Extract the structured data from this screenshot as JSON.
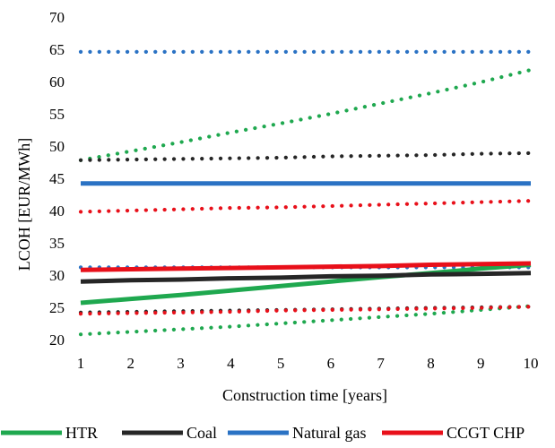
{
  "chart_data": {
    "type": "line",
    "title": "",
    "xlabel": "Construction time [years]",
    "ylabel": "LCOH [EUR/MWh]",
    "x": [
      1,
      2,
      3,
      4,
      5,
      6,
      7,
      8,
      9,
      10
    ],
    "xlim": [
      1,
      10
    ],
    "ylim": [
      20,
      70
    ],
    "yticks": [
      20,
      25,
      30,
      35,
      40,
      45,
      50,
      55,
      60,
      65,
      70
    ],
    "xticks": [
      1,
      2,
      3,
      4,
      5,
      6,
      7,
      8,
      9,
      10
    ],
    "grid": false,
    "legend_position": "bottom",
    "legend": [
      {
        "name": "HTR",
        "color": "#1fa84f"
      },
      {
        "name": "Coal",
        "color": "#262626"
      },
      {
        "name": "Natural gas",
        "color": "#2a72c4"
      },
      {
        "name": "CCGT CHP",
        "color": "#e8101a"
      }
    ],
    "series": [
      {
        "name": "HTR",
        "style": "solid",
        "color": "#1fa84f",
        "values": [
          25.7,
          26.3,
          26.9,
          27.6,
          28.3,
          29.0,
          29.7,
          30.3,
          31.0,
          31.6
        ]
      },
      {
        "name": "HTR",
        "style": "dotted",
        "color": "#1fa84f",
        "values": [
          47.8,
          49.2,
          50.6,
          52.1,
          53.5,
          55.0,
          56.6,
          58.2,
          59.9,
          61.8
        ]
      },
      {
        "name": "HTR",
        "style": "dotted",
        "color": "#1fa84f",
        "values": [
          20.8,
          21.2,
          21.6,
          22.0,
          22.5,
          23.0,
          23.5,
          24.0,
          24.6,
          25.2
        ]
      },
      {
        "name": "Coal",
        "style": "solid",
        "color": "#262626",
        "values": [
          29.0,
          29.2,
          29.3,
          29.5,
          29.6,
          29.8,
          29.9,
          30.1,
          30.2,
          30.3
        ]
      },
      {
        "name": "Coal",
        "style": "dotted",
        "color": "#262626",
        "values": [
          47.8,
          47.9,
          48.0,
          48.1,
          48.2,
          48.4,
          48.5,
          48.6,
          48.8,
          48.9
        ]
      },
      {
        "name": "Coal",
        "style": "dotted",
        "color": "#262626",
        "values": [
          24.2,
          24.3,
          24.4,
          24.5,
          24.6,
          24.7,
          24.8,
          24.9,
          25.0,
          25.1
        ]
      },
      {
        "name": "Natural gas",
        "style": "solid",
        "color": "#2a72c4",
        "values": [
          44.2,
          44.2,
          44.2,
          44.2,
          44.2,
          44.2,
          44.2,
          44.2,
          44.2,
          44.2
        ]
      },
      {
        "name": "Natural gas",
        "style": "dotted",
        "color": "#2a72c4",
        "values": [
          64.6,
          64.6,
          64.6,
          64.6,
          64.6,
          64.6,
          64.6,
          64.6,
          64.6,
          64.6
        ]
      },
      {
        "name": "Natural gas",
        "style": "dotted",
        "color": "#2a72c4",
        "values": [
          31.2,
          31.2,
          31.2,
          31.2,
          31.2,
          31.2,
          31.2,
          31.2,
          31.2,
          31.2
        ]
      },
      {
        "name": "CCGT CHP",
        "style": "solid",
        "color": "#e8101a",
        "values": [
          30.8,
          30.9,
          31.0,
          31.1,
          31.2,
          31.3,
          31.4,
          31.6,
          31.7,
          31.8
        ]
      },
      {
        "name": "CCGT CHP",
        "style": "dotted",
        "color": "#e8101a",
        "values": [
          39.8,
          40.0,
          40.2,
          40.4,
          40.5,
          40.7,
          40.9,
          41.1,
          41.3,
          41.5
        ]
      },
      {
        "name": "CCGT CHP",
        "style": "dotted",
        "color": "#e8101a",
        "values": [
          24.0,
          24.1,
          24.2,
          24.3,
          24.5,
          24.6,
          24.7,
          24.8,
          24.9,
          25.1
        ]
      }
    ]
  }
}
